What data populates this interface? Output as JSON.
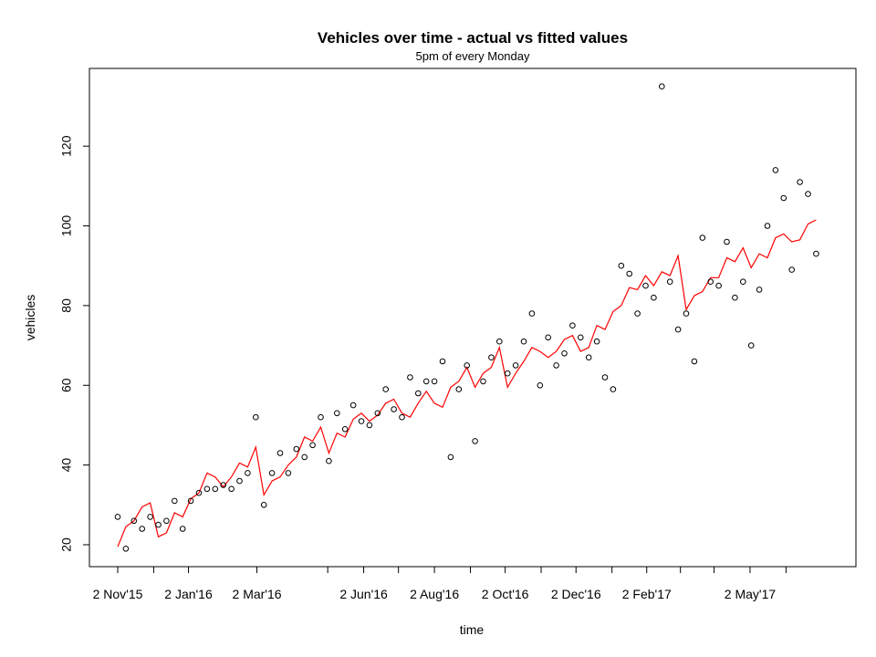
{
  "chart_data": {
    "type": "line+scatter",
    "title": "Vehicles over time - actual vs fitted values",
    "subtitle": "5pm of every Monday",
    "xlabel": "time",
    "ylabel": "vehicles",
    "ylim": [
      14.5,
      139.5
    ],
    "y_ticks": [
      20,
      40,
      60,
      80,
      100,
      120
    ],
    "x_tick_labels": [
      "2 Nov'15",
      "2 Jan'16",
      "2 Mar'16",
      "2 Jun'16",
      "2 Aug'16",
      "2 Oct'16",
      "2 Dec'16",
      "2 Feb'17",
      "2 May'17"
    ],
    "x_tick_weeks": [
      0,
      8.71,
      17.14,
      30.29,
      39.0,
      47.71,
      56.43,
      65.14,
      77.86
    ],
    "x_minor_tick_weeks": [
      4.43,
      25.86,
      34.57,
      43.43,
      52.14,
      60.86,
      69.29,
      73.43,
      82.29
    ],
    "series": [
      {
        "name": "actual",
        "style": "points",
        "color": "#000000",
        "values": [
          27,
          19,
          26,
          24,
          27,
          25,
          26,
          31,
          24,
          31,
          33,
          34,
          34,
          35,
          34,
          36,
          38,
          52,
          30,
          38,
          43,
          38,
          44,
          42,
          45,
          52,
          41,
          53,
          49,
          55,
          51,
          50,
          53,
          59,
          54,
          52,
          62,
          58,
          61,
          61,
          66,
          42,
          59,
          65,
          46,
          61,
          67,
          71,
          63,
          65,
          71,
          78,
          60,
          72,
          65,
          68,
          75,
          72,
          67,
          71,
          62,
          59,
          90,
          88,
          78,
          85,
          82,
          135,
          86,
          74,
          78,
          66,
          97,
          86,
          85,
          96,
          82,
          86,
          70,
          84,
          100,
          114,
          107,
          89,
          111,
          108,
          93
        ]
      },
      {
        "name": "fitted",
        "style": "line",
        "color": "#ff0000",
        "values": [
          19.5,
          24.5,
          26,
          29.5,
          30.5,
          22,
          23,
          28,
          27,
          31.5,
          33,
          38,
          37,
          34.5,
          37,
          40.5,
          39.5,
          44.5,
          32.5,
          36,
          37,
          40,
          42,
          47,
          46,
          49.5,
          43,
          48,
          47,
          51.5,
          53,
          51,
          52.5,
          55.5,
          56.5,
          53,
          52,
          55.5,
          58.5,
          55.5,
          54.5,
          59.5,
          61,
          64.5,
          59.5,
          63,
          64.5,
          69.5,
          59.5,
          63,
          66,
          69.5,
          68.5,
          67,
          68.5,
          71.5,
          72.5,
          68.5,
          69.5,
          75,
          74,
          78.5,
          80,
          84.5,
          84,
          87.5,
          85,
          88.5,
          87.5,
          92.5,
          79,
          82.5,
          83.5,
          87,
          87,
          92,
          91,
          94.5,
          89.5,
          93,
          92,
          97,
          98,
          96,
          96.5,
          100.5,
          101.5
        ]
      }
    ]
  }
}
